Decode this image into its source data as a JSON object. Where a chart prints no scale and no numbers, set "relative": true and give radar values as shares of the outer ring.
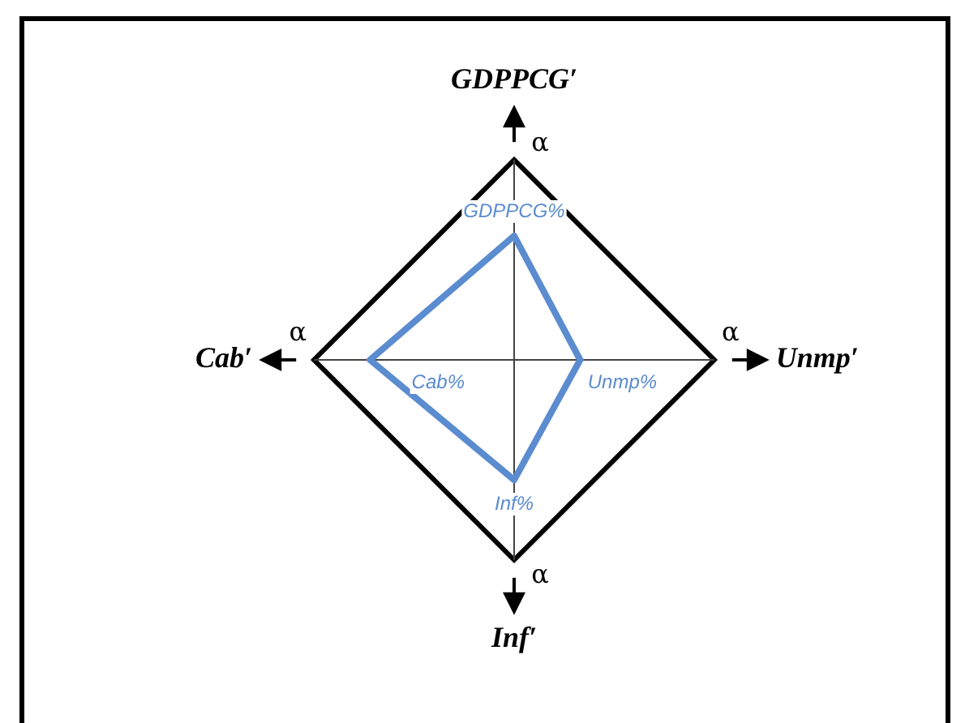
{
  "chart_data": {
    "type": "radar",
    "relative": true,
    "categories": [
      "GDPPCG′",
      "Unmp′",
      "Inf′",
      "Cab′"
    ],
    "series": [
      {
        "color": "#5b8ccf",
        "values": [
          0.62,
          0.33,
          0.6,
          0.72
        ]
      }
    ],
    "marker": "none",
    "legend": false,
    "grid": true,
    "annotations": [
      "α",
      "α",
      "α",
      "α",
      "GDPPCG%",
      "Unmp%",
      "Inf%",
      "Cab%"
    ]
  }
}
